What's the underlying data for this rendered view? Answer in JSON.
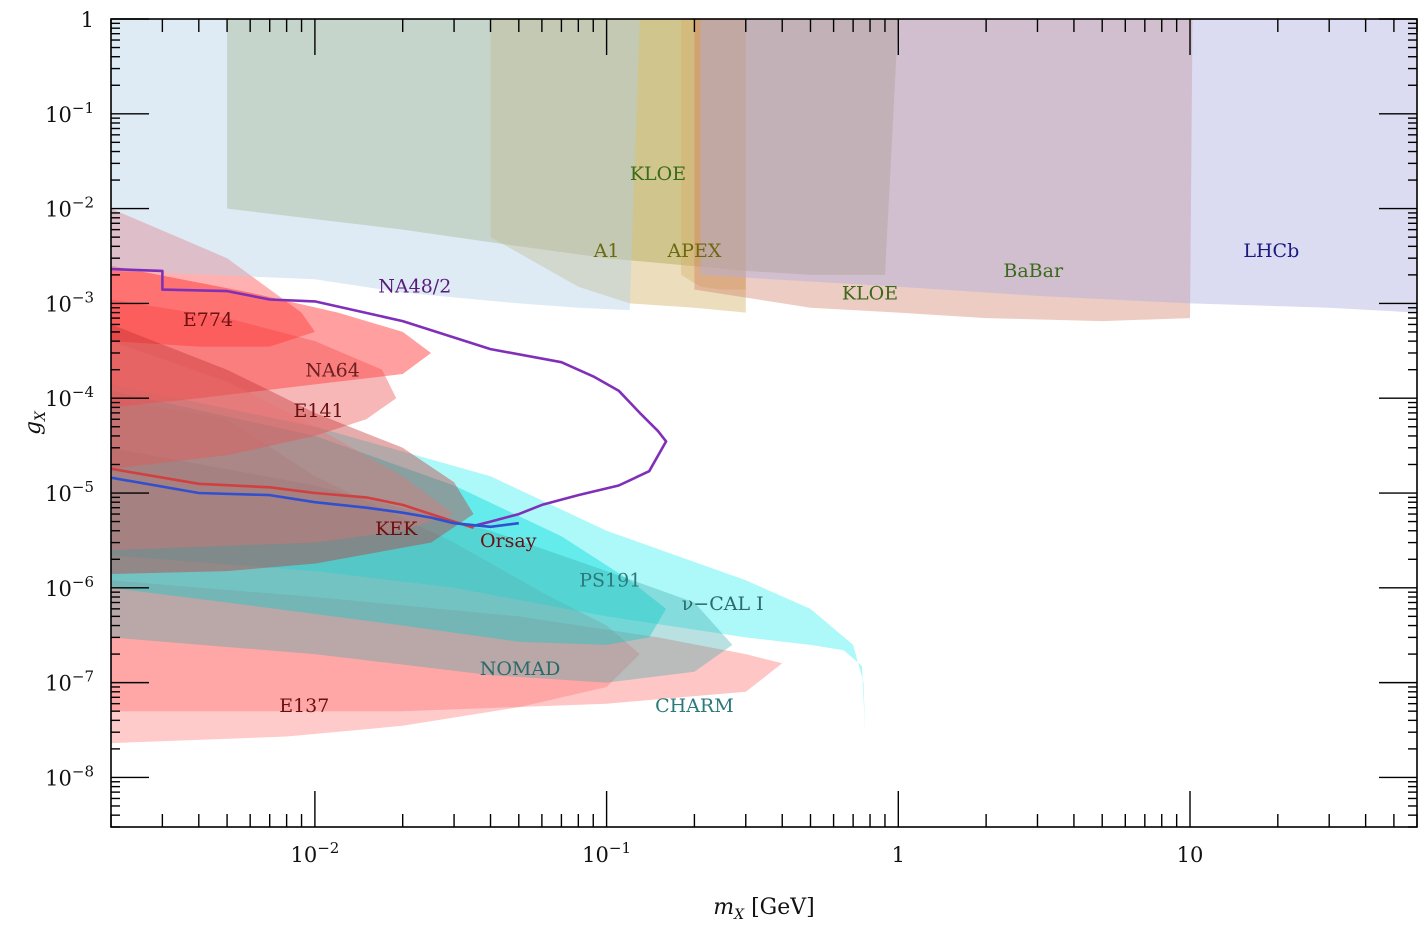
{
  "chart_data": {
    "type": "area",
    "title": "",
    "xlabel": "m_X [GeV]",
    "ylabel": "g_X",
    "xscale": "log",
    "yscale": "log",
    "xlim": [
      0.002,
      60
    ],
    "ylim": [
      3e-09,
      1
    ],
    "grid": false,
    "legend": "none (regions labeled inline)",
    "x_ticks": [
      {
        "value": 0.01,
        "base": "10",
        "exp": "−2"
      },
      {
        "value": 0.1,
        "base": "10",
        "exp": "−1"
      },
      {
        "value": 1,
        "base": "1",
        "exp": ""
      },
      {
        "value": 10,
        "base": "10",
        "exp": ""
      }
    ],
    "y_ticks": [
      {
        "value": 1,
        "base": "1",
        "exp": ""
      },
      {
        "value": 0.1,
        "base": "10",
        "exp": "−1"
      },
      {
        "value": 0.01,
        "base": "10",
        "exp": "−2"
      },
      {
        "value": 0.001,
        "base": "10",
        "exp": "−3"
      },
      {
        "value": 0.0001,
        "base": "10",
        "exp": "−4"
      },
      {
        "value": 1e-05,
        "base": "10",
        "exp": "−5"
      },
      {
        "value": 1e-06,
        "base": "10",
        "exp": "−6"
      },
      {
        "value": 1e-07,
        "base": "10",
        "exp": "−7"
      },
      {
        "value": 1e-08,
        "base": "10",
        "exp": "−8"
      }
    ],
    "series": [
      {
        "name": "E137",
        "color": "#ff8080",
        "opacity": 0.42,
        "points": [
          [
            0.002,
            0.0001
          ],
          [
            0.005,
            6e-05
          ],
          [
            0.01,
            1.5e-05
          ],
          [
            0.03,
            3e-06
          ],
          [
            0.06,
            9e-07
          ],
          [
            0.1,
            4e-07
          ],
          [
            0.13,
            2e-07
          ],
          [
            0.1,
            9e-08
          ],
          [
            0.05,
            5.5e-08
          ],
          [
            0.02,
            3.5e-08
          ],
          [
            0.008,
            2.7e-08
          ],
          [
            0.002,
            2.3e-08
          ]
        ]
      },
      {
        "name": "CHARM",
        "color": "#ff7070",
        "opacity": 0.4,
        "points": [
          [
            0.002,
            1.2e-06
          ],
          [
            0.01,
            8e-07
          ],
          [
            0.05,
            5e-07
          ],
          [
            0.15,
            3e-07
          ],
          [
            0.3,
            2e-07
          ],
          [
            0.4,
            1.6e-07
          ],
          [
            0.3,
            8e-08
          ],
          [
            0.1,
            6e-08
          ],
          [
            0.02,
            5e-08
          ],
          [
            0.002,
            5e-08
          ]
        ]
      },
      {
        "name": "ν−CAL I",
        "color": "#00e8e8",
        "opacity": 0.32,
        "points": [
          [
            0.002,
            0.00014
          ],
          [
            0.01,
            5e-05
          ],
          [
            0.04,
            1.5e-05
          ],
          [
            0.1,
            4e-06
          ],
          [
            0.3,
            1.2e-06
          ],
          [
            0.5,
            6e-07
          ],
          [
            0.7,
            2.5e-07
          ],
          [
            0.76,
            1e-07
          ],
          [
            0.77,
            3e-08
          ],
          [
            0.75,
            1.5e-07
          ],
          [
            0.65,
            2.2e-07
          ],
          [
            0.5,
            2.5e-07
          ],
          [
            0.3,
            3e-07
          ],
          [
            0.1,
            5e-07
          ],
          [
            0.03,
            1e-06
          ],
          [
            0.01,
            1.5e-06
          ],
          [
            0.002,
            2.2e-06
          ]
        ]
      },
      {
        "name": "PS191",
        "color": "#00dcdc",
        "opacity": 0.42,
        "points": [
          [
            0.002,
            0.00012
          ],
          [
            0.01,
            4e-05
          ],
          [
            0.03,
            1.2e-05
          ],
          [
            0.07,
            3.5e-06
          ],
          [
            0.12,
            1.2e-06
          ],
          [
            0.16,
            6e-07
          ],
          [
            0.14,
            3e-07
          ],
          [
            0.1,
            2.5e-07
          ],
          [
            0.05,
            2.7e-07
          ],
          [
            0.02,
            4e-07
          ],
          [
            0.005,
            7e-07
          ],
          [
            0.002,
            1e-06
          ]
        ]
      },
      {
        "name": "NOMAD",
        "color": "#3aa8a8",
        "opacity": 0.35,
        "points": [
          [
            0.002,
            3e-05
          ],
          [
            0.01,
            1.2e-05
          ],
          [
            0.04,
            4e-06
          ],
          [
            0.1,
            1.5e-06
          ],
          [
            0.2,
            7e-07
          ],
          [
            0.27,
            2.5e-07
          ],
          [
            0.2,
            1.3e-07
          ],
          [
            0.1,
            1e-07
          ],
          [
            0.04,
            1.2e-07
          ],
          [
            0.01,
            2e-07
          ],
          [
            0.002,
            3e-07
          ]
        ]
      },
      {
        "name": "E141",
        "color": "#ee6060",
        "opacity": 0.45,
        "points": [
          [
            0.002,
            0.0011
          ],
          [
            0.005,
            0.0007
          ],
          [
            0.01,
            0.0004
          ],
          [
            0.017,
            0.0002
          ],
          [
            0.019,
            0.0001
          ],
          [
            0.015,
            6e-05
          ],
          [
            0.01,
            4e-05
          ],
          [
            0.005,
            2.5e-05
          ],
          [
            0.002,
            1.8e-05
          ]
        ]
      },
      {
        "name": "NA64",
        "color": "#ff5050",
        "opacity": 0.55,
        "points": [
          [
            0.002,
            0.0025
          ],
          [
            0.006,
            0.0013
          ],
          [
            0.012,
            0.0008
          ],
          [
            0.02,
            0.0005
          ],
          [
            0.025,
            0.0003
          ],
          [
            0.02,
            0.00018
          ],
          [
            0.01,
            0.00014
          ],
          [
            0.004,
            0.0001
          ],
          [
            0.002,
            8e-05
          ]
        ]
      },
      {
        "name": "E774",
        "color": "#ff2020",
        "opacity": 0.35,
        "points": [
          [
            0.002,
            0.01
          ],
          [
            0.005,
            0.003
          ],
          [
            0.009,
            0.0008
          ],
          [
            0.01,
            0.0005
          ],
          [
            0.007,
            0.00035
          ],
          [
            0.004,
            0.00035
          ],
          [
            0.002,
            0.0004
          ]
        ]
      },
      {
        "name": "Orsay",
        "color": "#c03030",
        "opacity": 0.4,
        "points": [
          [
            0.002,
            0.0006
          ],
          [
            0.005,
            0.0002
          ],
          [
            0.01,
            7e-05
          ],
          [
            0.02,
            3e-05
          ],
          [
            0.03,
            1.3e-05
          ],
          [
            0.035,
            6e-06
          ],
          [
            0.025,
            3e-06
          ],
          [
            0.01,
            1.8e-06
          ],
          [
            0.005,
            1.5e-06
          ],
          [
            0.002,
            1.4e-06
          ]
        ]
      },
      {
        "name": "KEK",
        "color": "#ee7070",
        "opacity": 0.35,
        "points": [
          [
            0.002,
            0.0004
          ],
          [
            0.005,
            0.00015
          ],
          [
            0.01,
            5e-05
          ],
          [
            0.02,
            1.5e-05
          ],
          [
            0.03,
            6e-06
          ],
          [
            0.02,
            4e-06
          ],
          [
            0.01,
            3e-06
          ],
          [
            0.002,
            2.5e-06
          ]
        ]
      },
      {
        "name": "KLOE",
        "color": "#7a8a20",
        "opacity": 0.32,
        "points": [
          [
            0.005,
            1
          ],
          [
            0.005,
            0.01
          ],
          [
            0.02,
            0.006
          ],
          [
            0.05,
            0.004
          ],
          [
            0.1,
            0.003
          ],
          [
            0.3,
            0.0022
          ],
          [
            0.5,
            0.002
          ],
          [
            0.9,
            0.002
          ],
          [
            1.0,
            1
          ],
          [
            0.005,
            1
          ]
        ]
      },
      {
        "name": "A1",
        "color": "#c8a040",
        "opacity": 0.35,
        "points": [
          [
            0.04,
            1
          ],
          [
            0.04,
            0.005
          ],
          [
            0.08,
            0.0015
          ],
          [
            0.12,
            0.001
          ],
          [
            0.2,
            0.0009
          ],
          [
            0.3,
            0.0008
          ],
          [
            0.3,
            1
          ]
        ]
      },
      {
        "name": "APEX",
        "color": "#d8a860",
        "opacity": 0.35,
        "points": [
          [
            0.18,
            1
          ],
          [
            0.18,
            0.002
          ],
          [
            0.21,
            0.0015
          ],
          [
            0.25,
            0.0014
          ],
          [
            0.3,
            0.0014
          ],
          [
            0.3,
            1
          ]
        ]
      },
      {
        "name": "NA48/2",
        "color": "#b0d0e8",
        "opacity": 0.42,
        "points": [
          [
            0.002,
            1
          ],
          [
            0.002,
            0.0022
          ],
          [
            0.01,
            0.0018
          ],
          [
            0.02,
            0.0013
          ],
          [
            0.05,
            0.001
          ],
          [
            0.08,
            0.0009
          ],
          [
            0.12,
            0.00085
          ],
          [
            0.13,
            1
          ]
        ]
      },
      {
        "name": "BaBar",
        "color": "#d07860",
        "opacity": 0.38,
        "points": [
          [
            0.2,
            1
          ],
          [
            0.2,
            0.0014
          ],
          [
            0.5,
            0.0009
          ],
          [
            1,
            0.0008
          ],
          [
            2,
            0.0007
          ],
          [
            5,
            0.00065
          ],
          [
            10,
            0.0007
          ],
          [
            10.2,
            1
          ]
        ]
      },
      {
        "name": "LHCb",
        "color": "#b0b0e0",
        "opacity": 0.45,
        "points": [
          [
            0.21,
            1
          ],
          [
            0.21,
            0.002
          ],
          [
            1,
            0.0015
          ],
          [
            3,
            0.0012
          ],
          [
            10,
            0.001
          ],
          [
            30,
            0.0009
          ],
          [
            60,
            0.0008
          ],
          [
            60,
            1
          ]
        ]
      }
    ],
    "curves": [
      {
        "name": "purple contour",
        "color": "#8030b8",
        "points": [
          [
            0.002,
            0.0023
          ],
          [
            0.003,
            0.0022
          ],
          [
            0.003,
            0.0014
          ],
          [
            0.005,
            0.00135
          ],
          [
            0.007,
            0.0011
          ],
          [
            0.01,
            0.00105
          ],
          [
            0.02,
            0.00065
          ],
          [
            0.04,
            0.00033
          ],
          [
            0.07,
            0.00024
          ],
          [
            0.09,
            0.00017
          ],
          [
            0.11,
            0.00012
          ],
          [
            0.13,
            7e-05
          ],
          [
            0.15,
            4.5e-05
          ],
          [
            0.16,
            3.5e-05
          ],
          [
            0.14,
            1.7e-05
          ],
          [
            0.11,
            1.2e-05
          ],
          [
            0.08,
            9.5e-06
          ],
          [
            0.06,
            7.5e-06
          ],
          [
            0.05,
            6e-06
          ],
          [
            0.04,
            5e-06
          ],
          [
            0.035,
            4.5e-06
          ]
        ]
      },
      {
        "name": "red contour",
        "color": "#d04040",
        "points": [
          [
            0.002,
            1.8e-05
          ],
          [
            0.004,
            1.25e-05
          ],
          [
            0.007,
            1.15e-05
          ],
          [
            0.01,
            1e-05
          ],
          [
            0.015,
            9e-06
          ],
          [
            0.02,
            7.5e-06
          ],
          [
            0.025,
            6e-06
          ],
          [
            0.03,
            5e-06
          ],
          [
            0.035,
            4.3e-06
          ]
        ]
      },
      {
        "name": "blue contour",
        "color": "#3050d0",
        "points": [
          [
            0.002,
            1.45e-05
          ],
          [
            0.004,
            1e-05
          ],
          [
            0.007,
            9.5e-06
          ],
          [
            0.01,
            8e-06
          ],
          [
            0.015,
            7e-06
          ],
          [
            0.02,
            6.2e-06
          ],
          [
            0.025,
            5.5e-06
          ],
          [
            0.03,
            4.8e-06
          ],
          [
            0.04,
            4.4e-06
          ],
          [
            0.05,
            4.8e-06
          ]
        ]
      }
    ],
    "annotations": [
      {
        "text": "KLOE",
        "x": 0.15,
        "y": 0.02,
        "color": "#3a6a1a"
      },
      {
        "text": "A1",
        "x": 0.1,
        "y": 0.0031,
        "color": "#6a6a10"
      },
      {
        "text": "APEX",
        "x": 0.2,
        "y": 0.0031,
        "color": "#6a6a10"
      },
      {
        "text": "LHCb",
        "x": 19,
        "y": 0.0031,
        "color": "#1a1a80"
      },
      {
        "text": "BaBar",
        "x": 2.9,
        "y": 0.0019,
        "color": "#3a6a1a"
      },
      {
        "text": "KLOE",
        "x": 0.8,
        "y": 0.0011,
        "color": "#3a6a1a"
      },
      {
        "text": "NA48/2",
        "x": 0.022,
        "y": 0.0013,
        "color": "#5a1a7a"
      },
      {
        "text": "E774",
        "x": 0.0043,
        "y": 0.00058,
        "color": "#6a1010"
      },
      {
        "text": "NA64",
        "x": 0.0115,
        "y": 0.00017,
        "color": "#6a2020"
      },
      {
        "text": "E141",
        "x": 0.0103,
        "y": 6.3e-05,
        "color": "#6a1010"
      },
      {
        "text": "KEK",
        "x": 0.019,
        "y": 3.6e-06,
        "color": "#6a1010"
      },
      {
        "text": "Orsay",
        "x": 0.046,
        "y": 2.7e-06,
        "color": "#6a1010"
      },
      {
        "text": "PS191",
        "x": 0.103,
        "y": 1.03e-06,
        "color": "#2a7a7a"
      },
      {
        "text": "ν−CAL I",
        "x": 0.25,
        "y": 5.8e-07,
        "color": "#2a6a6a"
      },
      {
        "text": "NOMAD",
        "x": 0.0505,
        "y": 1.2e-07,
        "color": "#2a6a6a"
      },
      {
        "text": "CHARM",
        "x": 0.2,
        "y": 4.9e-08,
        "color": "#2a7a7a"
      },
      {
        "text": "E137",
        "x": 0.0092,
        "y": 4.9e-08,
        "color": "#6a1010"
      }
    ]
  }
}
